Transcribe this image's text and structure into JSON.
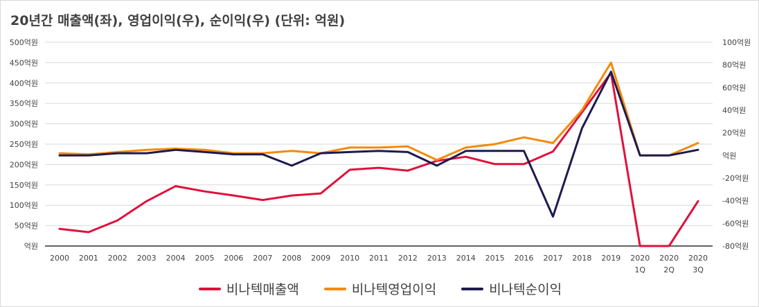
{
  "chart_data": {
    "type": "line",
    "title": "20년간 매출액(좌), 영업이익(우), 순이익(우) (단위: 억원)",
    "categories": [
      [
        "2000"
      ],
      [
        "2001"
      ],
      [
        "2002"
      ],
      [
        "2003"
      ],
      [
        "2004"
      ],
      [
        "2005"
      ],
      [
        "2006"
      ],
      [
        "2007"
      ],
      [
        "2008"
      ],
      [
        "2009"
      ],
      [
        "2010"
      ],
      [
        "2011"
      ],
      [
        "2012"
      ],
      [
        "2013"
      ],
      [
        "2014"
      ],
      [
        "2015"
      ],
      [
        "2016"
      ],
      [
        "2017"
      ],
      [
        "2018"
      ],
      [
        "2019"
      ],
      [
        "2020",
        "1Q"
      ],
      [
        "2020",
        "2Q"
      ],
      [
        "2020",
        "3Q"
      ]
    ],
    "y_left": {
      "ylim": [
        0,
        500
      ],
      "ticks": [
        0,
        50,
        100,
        150,
        200,
        250,
        300,
        350,
        400,
        450,
        500
      ],
      "tick_labels": [
        "억원",
        "50억원",
        "100억원",
        "150억원",
        "200억원",
        "250억원",
        "300억원",
        "350억원",
        "400억원",
        "450억원",
        "500억원"
      ]
    },
    "y_right": {
      "ylim": [
        -80,
        100
      ],
      "ticks": [
        -80,
        -60,
        -40,
        -20,
        0,
        20,
        40,
        60,
        80,
        100
      ],
      "tick_labels": [
        "-80억원",
        "-60억원",
        "-40억원",
        "-20억원",
        "억원",
        "20억원",
        "40억원",
        "60억원",
        "80억원",
        "100억원"
      ]
    },
    "series": [
      {
        "name": "비나텍매출액",
        "axis": "left",
        "color": "#e0103a",
        "values": [
          42,
          34,
          63,
          110,
          147,
          134,
          124,
          113,
          124,
          129,
          187,
          192,
          185,
          209,
          219,
          201,
          201,
          232,
          328,
          425,
          0,
          0,
          110
        ]
      },
      {
        "name": "비나텍영업이익",
        "axis": "right",
        "color": "#f28a0c",
        "values": [
          2,
          1,
          3,
          5,
          6,
          5,
          2,
          2,
          4,
          2,
          7,
          7,
          8,
          -4,
          7,
          10,
          16,
          11,
          40,
          82,
          0,
          0,
          11
        ]
      },
      {
        "name": "비나텍순이익",
        "axis": "right",
        "color": "#1c1a4f",
        "values": [
          0,
          0,
          2,
          2,
          5,
          3,
          1,
          1,
          -9,
          2,
          3,
          4,
          3,
          -9,
          4,
          4,
          4,
          -54,
          24,
          74,
          0,
          0,
          5
        ]
      }
    ],
    "grid": "horizontal",
    "legend_position": "bottom"
  }
}
